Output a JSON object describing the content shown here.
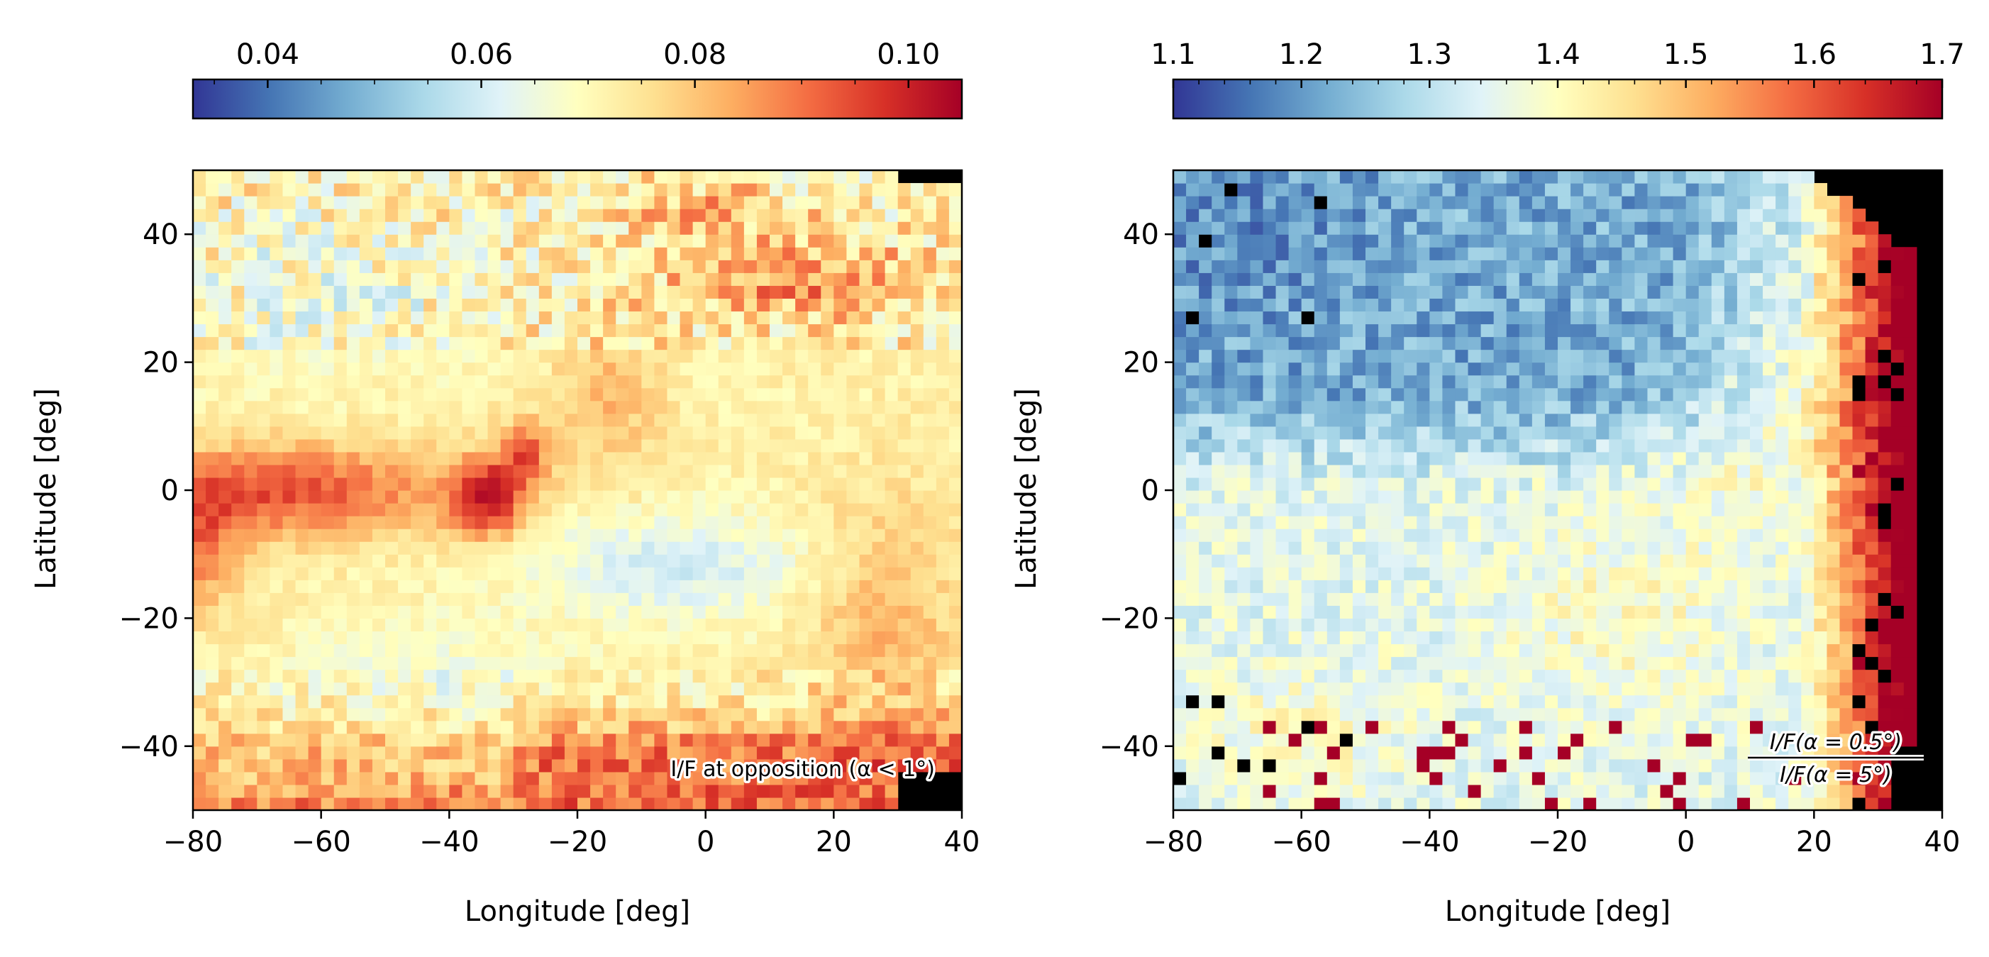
{
  "chart_data": [
    {
      "type": "heatmap",
      "id": "left",
      "xlabel": "Longitude [deg]",
      "ylabel": "Latitude [deg]",
      "xlim": [
        -80,
        40
      ],
      "ylim": [
        -50,
        50
      ],
      "xticks": [
        -80,
        -60,
        -40,
        -20,
        0,
        20,
        40
      ],
      "yticks": [
        -40,
        -20,
        0,
        20,
        40
      ],
      "xtick_labels": [
        "−80",
        "−60",
        "−40",
        "−20",
        "0",
        "20",
        "40"
      ],
      "ytick_labels": [
        "−40",
        "−20",
        "0",
        "20",
        "40"
      ],
      "colormap": "RdYlBu_r",
      "colorbar": {
        "range": [
          0.033,
          0.105
        ],
        "ticks": [
          0.04,
          0.06,
          0.08,
          0.1
        ],
        "tick_labels": [
          "0.04",
          "0.06",
          "0.08",
          "0.10"
        ],
        "minor_step": 0.005
      },
      "annotation": "I/F at opposition (α < 1°)",
      "grid": false,
      "cell_size_deg": 2,
      "features": [
        {
          "name": "dark-red equatorial band",
          "lon_range": [
            -80,
            -25
          ],
          "lat_center": 0,
          "value": 0.09
        },
        {
          "name": "dark spot",
          "lon": -34,
          "lat": -2,
          "value": 0.102
        },
        {
          "name": "dark spot",
          "lon": -28,
          "lat": 5,
          "value": 0.1
        },
        {
          "name": "bright region",
          "lon_range": [
            -25,
            20
          ],
          "lat_center": -12,
          "value": 0.062
        },
        {
          "name": "northeast orange region",
          "lon": 15,
          "lat": 33,
          "value": 0.085
        },
        {
          "name": "southern orange band",
          "lon_range": [
            -80,
            40
          ],
          "lat_center": -42,
          "value": 0.088
        },
        {
          "name": "no data",
          "lon_range": [
            30,
            40
          ],
          "lat_range": [
            -50,
            -44
          ]
        }
      ]
    },
    {
      "type": "heatmap",
      "id": "right",
      "xlabel": "Longitude [deg]",
      "ylabel": "Latitude [deg]",
      "xlim": [
        -80,
        40
      ],
      "ylim": [
        -50,
        50
      ],
      "xticks": [
        -80,
        -60,
        -40,
        -20,
        0,
        20,
        40
      ],
      "yticks": [
        -40,
        -20,
        0,
        20,
        40
      ],
      "xtick_labels": [
        "−80",
        "−60",
        "−40",
        "−20",
        "0",
        "20",
        "40"
      ],
      "ytick_labels": [
        "−40",
        "−20",
        "0",
        "20",
        "40"
      ],
      "colormap": "RdYlBu_r",
      "colorbar": {
        "range": [
          1.1,
          1.7
        ],
        "ticks": [
          1.1,
          1.2,
          1.3,
          1.4,
          1.5,
          1.6,
          1.7
        ],
        "tick_labels": [
          "1.1",
          "1.2",
          "1.3",
          "1.4",
          "1.5",
          "1.6",
          "1.7"
        ],
        "minor_step": 0.02
      },
      "annotation_numerator": "I/F(α = 0.5°)",
      "annotation_denominator": "I/F(α = 5°)",
      "grid": false,
      "cell_size_deg": 2,
      "features": [
        {
          "name": "northwest blue region",
          "lon_range": [
            -80,
            -5
          ],
          "lat_range": [
            0,
            50
          ],
          "value": 1.22
        },
        {
          "name": "light central-south region",
          "lon_range": [
            -75,
            10
          ],
          "lat_range": [
            -45,
            0
          ],
          "value": 1.36
        },
        {
          "name": "yellow patch",
          "lon": -10,
          "lat": -20,
          "value": 1.42
        },
        {
          "name": "eastern dark-red limb",
          "lon_range": [
            25,
            38
          ],
          "lat_range": [
            -50,
            5
          ],
          "value": 1.7
        },
        {
          "name": "no data limb",
          "lon_range": [
            34,
            40
          ],
          "lat_range": [
            -50,
            45
          ]
        }
      ]
    }
  ]
}
